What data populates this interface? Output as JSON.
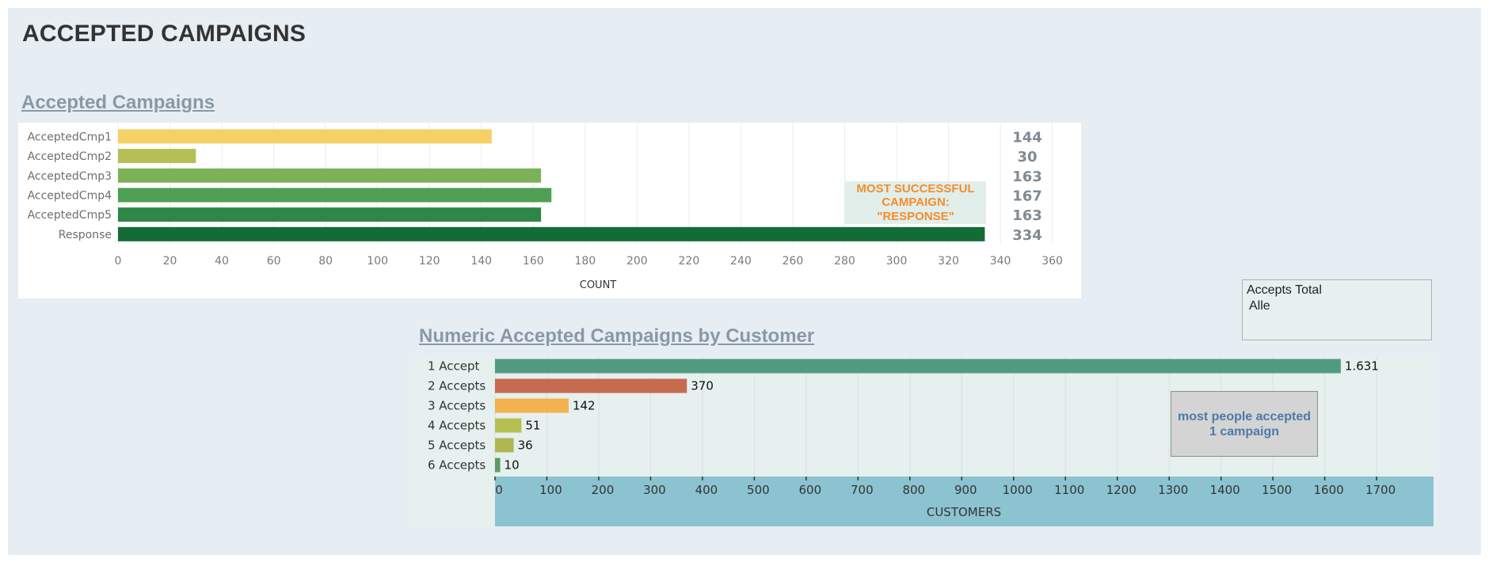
{
  "dashboard": {
    "title": "ACCEPTED CAMPAIGNS",
    "background": "#e6eef4"
  },
  "filter": {
    "label": "Accepts Total",
    "value": "Alle"
  },
  "annotations": {
    "chart1_note": "MOST SUCCESSFUL\nCAMPAIGN:\n\"RESPONSE\"",
    "chart2_note": "most people accepted\n1 campaign"
  },
  "chart_data": [
    {
      "type": "bar",
      "orientation": "horizontal",
      "title": "Accepted Campaigns",
      "xlabel": "COUNT",
      "ylabel": "",
      "categories": [
        "AcceptedCmp1",
        "AcceptedCmp2",
        "AcceptedCmp3",
        "AcceptedCmp4",
        "AcceptedCmp5",
        "Response"
      ],
      "values": [
        144,
        30,
        163,
        167,
        163,
        334
      ],
      "value_labels": [
        "144",
        "30",
        "163",
        "167",
        "163",
        "334"
      ],
      "colors": [
        "#f5d167",
        "#b5bf55",
        "#7bb257",
        "#4f9f55",
        "#2e8745",
        "#136b35"
      ],
      "xlim": [
        0,
        365
      ],
      "xticks": [
        0,
        20,
        40,
        60,
        80,
        100,
        120,
        140,
        160,
        180,
        200,
        220,
        240,
        260,
        280,
        300,
        320,
        340,
        360
      ],
      "grid": true
    },
    {
      "type": "bar",
      "orientation": "horizontal",
      "title": "Numeric Accepted Campaigns by Customer",
      "xlabel": "CUSTOMERS",
      "ylabel": "",
      "categories": [
        "1   Accept",
        "2 Accepts",
        "3 Accepts",
        "4 Accepts",
        "5 Accepts",
        "6 Accepts"
      ],
      "values": [
        1631,
        370,
        142,
        51,
        36,
        10
      ],
      "value_labels": [
        "1.631",
        "370",
        "142",
        "51",
        "36",
        "10"
      ],
      "colors": [
        "#529b83",
        "#c66b4f",
        "#f2b24e",
        "#b7bf53",
        "#afb653",
        "#5c9b64"
      ],
      "xlim": [
        0,
        1790
      ],
      "xticks": [
        0,
        100,
        200,
        300,
        400,
        500,
        600,
        700,
        800,
        900,
        1000,
        1100,
        1200,
        1300,
        1400,
        1500,
        1600,
        1700
      ],
      "grid": true,
      "axis_band_color": "#8cc3d1"
    }
  ]
}
